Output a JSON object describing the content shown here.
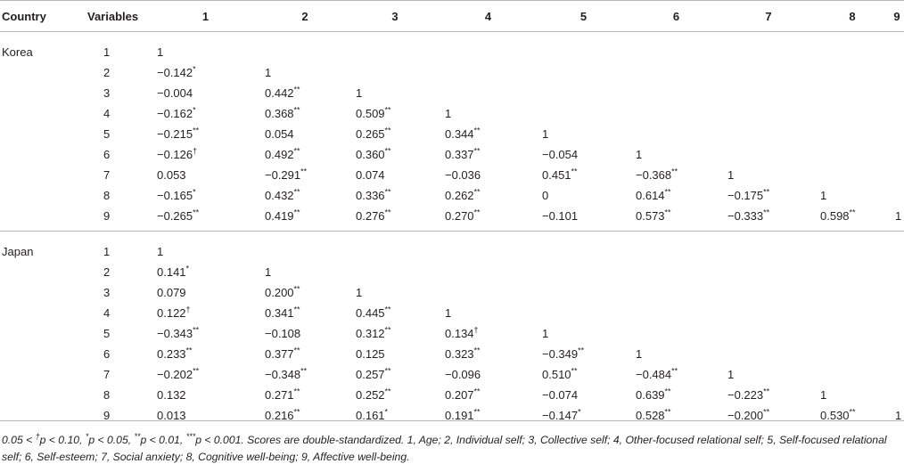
{
  "header": {
    "country": "Country",
    "variables": "Variables",
    "cols": [
      "1",
      "2",
      "3",
      "4",
      "5",
      "6",
      "7",
      "8",
      "9"
    ]
  },
  "groups": [
    {
      "country": "Korea",
      "rows": [
        {
          "var": "1",
          "cells": [
            [
              "1",
              ""
            ],
            [
              "",
              ""
            ],
            [
              "",
              ""
            ],
            [
              "",
              ""
            ],
            [
              "",
              ""
            ],
            [
              "",
              ""
            ],
            [
              "",
              ""
            ],
            [
              "",
              ""
            ],
            [
              "",
              ""
            ]
          ]
        },
        {
          "var": "2",
          "cells": [
            [
              "−0.142",
              "*"
            ],
            [
              "1",
              ""
            ],
            [
              "",
              ""
            ],
            [
              "",
              ""
            ],
            [
              "",
              ""
            ],
            [
              "",
              ""
            ],
            [
              "",
              ""
            ],
            [
              "",
              ""
            ],
            [
              "",
              ""
            ]
          ]
        },
        {
          "var": "3",
          "cells": [
            [
              "−0.004",
              ""
            ],
            [
              "0.442",
              "**"
            ],
            [
              "1",
              ""
            ],
            [
              "",
              ""
            ],
            [
              "",
              ""
            ],
            [
              "",
              ""
            ],
            [
              "",
              ""
            ],
            [
              "",
              ""
            ],
            [
              "",
              ""
            ]
          ]
        },
        {
          "var": "4",
          "cells": [
            [
              "−0.162",
              "*"
            ],
            [
              "0.368",
              "**"
            ],
            [
              "0.509",
              "**"
            ],
            [
              "1",
              ""
            ],
            [
              "",
              ""
            ],
            [
              "",
              ""
            ],
            [
              "",
              ""
            ],
            [
              "",
              ""
            ],
            [
              "",
              ""
            ]
          ]
        },
        {
          "var": "5",
          "cells": [
            [
              "−0.215",
              "**"
            ],
            [
              "0.054",
              ""
            ],
            [
              "0.265",
              "**"
            ],
            [
              "0.344",
              "**"
            ],
            [
              "1",
              ""
            ],
            [
              "",
              ""
            ],
            [
              "",
              ""
            ],
            [
              "",
              ""
            ],
            [
              "",
              ""
            ]
          ]
        },
        {
          "var": "6",
          "cells": [
            [
              "−0.126",
              "†"
            ],
            [
              "0.492",
              "**"
            ],
            [
              "0.360",
              "**"
            ],
            [
              "0.337",
              "**"
            ],
            [
              "−0.054",
              ""
            ],
            [
              "1",
              ""
            ],
            [
              "",
              ""
            ],
            [
              "",
              ""
            ],
            [
              "",
              ""
            ]
          ]
        },
        {
          "var": "7",
          "cells": [
            [
              "0.053",
              ""
            ],
            [
              "−0.291",
              "**"
            ],
            [
              "0.074",
              ""
            ],
            [
              "−0.036",
              ""
            ],
            [
              "0.451",
              "**"
            ],
            [
              "−0.368",
              "**"
            ],
            [
              "1",
              ""
            ],
            [
              "",
              ""
            ],
            [
              "",
              ""
            ]
          ]
        },
        {
          "var": "8",
          "cells": [
            [
              "−0.165",
              "*"
            ],
            [
              "0.432",
              "**"
            ],
            [
              "0.336",
              "**"
            ],
            [
              "0.262",
              "**"
            ],
            [
              "0",
              ""
            ],
            [
              "0.614",
              "**"
            ],
            [
              "−0.175",
              "**"
            ],
            [
              "1",
              ""
            ],
            [
              "",
              ""
            ]
          ]
        },
        {
          "var": "9",
          "cells": [
            [
              "−0.265",
              "**"
            ],
            [
              "0.419",
              "**"
            ],
            [
              "0.276",
              "**"
            ],
            [
              "0.270",
              "**"
            ],
            [
              "−0.101",
              ""
            ],
            [
              "0.573",
              "**"
            ],
            [
              "−0.333",
              "**"
            ],
            [
              "0.598",
              "**"
            ],
            [
              "1",
              ""
            ]
          ]
        }
      ]
    },
    {
      "country": "Japan",
      "rows": [
        {
          "var": "1",
          "cells": [
            [
              "1",
              ""
            ],
            [
              "",
              ""
            ],
            [
              "",
              ""
            ],
            [
              "",
              ""
            ],
            [
              "",
              ""
            ],
            [
              "",
              ""
            ],
            [
              "",
              ""
            ],
            [
              "",
              ""
            ],
            [
              "",
              ""
            ]
          ]
        },
        {
          "var": "2",
          "cells": [
            [
              "0.141",
              "*"
            ],
            [
              "1",
              ""
            ],
            [
              "",
              ""
            ],
            [
              "",
              ""
            ],
            [
              "",
              ""
            ],
            [
              "",
              ""
            ],
            [
              "",
              ""
            ],
            [
              "",
              ""
            ],
            [
              "",
              ""
            ]
          ]
        },
        {
          "var": "3",
          "cells": [
            [
              "0.079",
              ""
            ],
            [
              "0.200",
              "**"
            ],
            [
              "1",
              ""
            ],
            [
              "",
              ""
            ],
            [
              "",
              ""
            ],
            [
              "",
              ""
            ],
            [
              "",
              ""
            ],
            [
              "",
              ""
            ],
            [
              "",
              ""
            ]
          ]
        },
        {
          "var": "4",
          "cells": [
            [
              "0.122",
              "†"
            ],
            [
              "0.341",
              "**"
            ],
            [
              "0.445",
              "**"
            ],
            [
              "1",
              ""
            ],
            [
              "",
              ""
            ],
            [
              "",
              ""
            ],
            [
              "",
              ""
            ],
            [
              "",
              ""
            ],
            [
              "",
              ""
            ]
          ]
        },
        {
          "var": "5",
          "cells": [
            [
              "−0.343",
              "**"
            ],
            [
              "−0.108",
              ""
            ],
            [
              "0.312",
              "**"
            ],
            [
              "0.134",
              "†"
            ],
            [
              "1",
              ""
            ],
            [
              "",
              ""
            ],
            [
              "",
              ""
            ],
            [
              "",
              ""
            ],
            [
              "",
              ""
            ]
          ]
        },
        {
          "var": "6",
          "cells": [
            [
              "0.233",
              "**"
            ],
            [
              "0.377",
              "**"
            ],
            [
              "0.125",
              ""
            ],
            [
              "0.323",
              "**"
            ],
            [
              "−0.349",
              "**"
            ],
            [
              "1",
              ""
            ],
            [
              "",
              ""
            ],
            [
              "",
              ""
            ],
            [
              "",
              ""
            ]
          ]
        },
        {
          "var": "7",
          "cells": [
            [
              "−0.202",
              "**"
            ],
            [
              "−0.348",
              "**"
            ],
            [
              "0.257",
              "**"
            ],
            [
              "−0.096",
              ""
            ],
            [
              "0.510",
              "**"
            ],
            [
              "−0.484",
              "**"
            ],
            [
              "1",
              ""
            ],
            [
              "",
              ""
            ],
            [
              "",
              ""
            ]
          ]
        },
        {
          "var": "8",
          "cells": [
            [
              "0.132",
              ""
            ],
            [
              "0.271",
              "**"
            ],
            [
              "0.252",
              "**"
            ],
            [
              "0.207",
              "**"
            ],
            [
              "−0.074",
              ""
            ],
            [
              "0.639",
              "**"
            ],
            [
              "−0.223",
              "**"
            ],
            [
              "1",
              ""
            ],
            [
              "",
              ""
            ]
          ]
        },
        {
          "var": "9",
          "cells": [
            [
              "0.013",
              ""
            ],
            [
              "0.216",
              "**"
            ],
            [
              "0.161",
              "*"
            ],
            [
              "0.191",
              "**"
            ],
            [
              "−0.147",
              "*"
            ],
            [
              "0.528",
              "**"
            ],
            [
              "−0.200",
              "**"
            ],
            [
              "0.530",
              "**"
            ],
            [
              "1",
              ""
            ]
          ]
        }
      ]
    }
  ],
  "footnote": {
    "lead": "0.05 < ",
    "dagger": "†",
    "after_dagger": "p < 0.10, ",
    "star1": "*",
    "after_star1": "p < 0.05, ",
    "star2": "**",
    "after_star2": "p < 0.01, ",
    "star3": "***",
    "after_star3": "p < 0.001. Scores are double-standardized. 1, Age; 2, Individual self; 3, Collective self; 4, Other-focused relational self; 5, Self-focused relational self; 6, Self-esteem; 7, Social anxiety; 8, Cognitive well-being; 9, Affective well-being."
  }
}
